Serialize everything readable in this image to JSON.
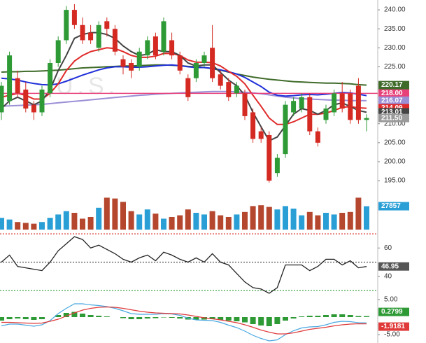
{
  "chart_data": [
    {
      "type": "candlestick",
      "watermark": "U.S.",
      "up_color": "#2e9a36",
      "down_color": "#d42a22",
      "ylim": [
        192.8,
        242.6
      ],
      "yticks": [
        {
          "value": 195,
          "label": "195.00"
        },
        {
          "value": 200,
          "label": "200.00"
        },
        {
          "value": 205,
          "label": "205.00"
        },
        {
          "value": 210,
          "label": "210.00"
        },
        {
          "value": 225,
          "label": "225.00"
        },
        {
          "value": 230,
          "label": "230.00"
        },
        {
          "value": 235,
          "label": "235.00"
        },
        {
          "value": 240,
          "label": "240.00"
        }
      ],
      "open": [
        213,
        216,
        222,
        219,
        215,
        213,
        218,
        226,
        232,
        240,
        236,
        234,
        230,
        237,
        235,
        227,
        226,
        225,
        228,
        233,
        229,
        232,
        228,
        222,
        222,
        226,
        230,
        223,
        221,
        218,
        218,
        213,
        208,
        207,
        197,
        202,
        213,
        214,
        217,
        208,
        211,
        213,
        218,
        218,
        220,
        211
      ],
      "high": [
        221,
        229,
        224,
        221,
        216,
        220,
        227,
        233,
        241,
        241.5,
        238,
        236,
        237,
        238,
        236,
        228,
        227,
        230,
        233,
        234,
        238,
        234,
        229,
        223,
        227,
        229,
        236,
        224,
        222,
        221,
        219,
        214,
        209,
        208,
        202,
        216,
        217,
        218,
        218,
        209,
        215,
        219,
        221,
        219,
        222,
        212.5
      ],
      "low": [
        211,
        215,
        217,
        213,
        211,
        212,
        217,
        225,
        231,
        235,
        231,
        231,
        229,
        233,
        228,
        223,
        222,
        224,
        227,
        227,
        228,
        227,
        223,
        216,
        221,
        225,
        221,
        219,
        216,
        217,
        211,
        205,
        205,
        194.5,
        196,
        201,
        212,
        213,
        207,
        204,
        210,
        212,
        213,
        210,
        210,
        208
      ],
      "close": [
        220,
        228,
        218,
        214,
        213,
        219,
        226,
        232,
        240,
        236,
        232,
        232,
        236,
        235,
        229,
        225,
        224,
        229,
        232,
        228,
        237,
        228,
        224,
        217,
        226,
        228,
        222,
        220,
        217,
        220,
        212,
        206,
        206,
        195,
        201,
        215,
        216,
        217,
        208,
        205,
        214,
        218,
        214,
        211,
        211,
        211.5
      ],
      "last_label": "211.50",
      "last_color": "#9a9a9a",
      "level": {
        "value": 218,
        "label": "218.00",
        "color": "#e8417a"
      },
      "series": [
        {
          "color": "#3f6b2a",
          "last_label": "220.17",
          "values": [
            223.6,
            223.7,
            223.7,
            223.8,
            223.8,
            223.9,
            224.0,
            224.1,
            224.3,
            224.5,
            224.7,
            224.8,
            224.9,
            225.0,
            225.1,
            225.2,
            225.2,
            225.3,
            225.4,
            225.5,
            225.5,
            225.4,
            225.3,
            225.1,
            225.0,
            224.8,
            224.5,
            224.1,
            223.6,
            223.1,
            222.7,
            222.3,
            222.0,
            221.7,
            221.5,
            221.3,
            221.1,
            221.0,
            220.9,
            220.8,
            220.7,
            220.7,
            220.6,
            220.5,
            220.3,
            220.17
          ]
        },
        {
          "color": "#9b8fd6",
          "last_label": "216.07",
          "values": [
            214.6,
            214.7,
            214.8,
            214.9,
            215.0,
            215.1,
            215.3,
            215.5,
            215.7,
            215.9,
            216.1,
            216.3,
            216.5,
            216.7,
            216.9,
            217.1,
            217.3,
            217.5,
            217.6,
            217.8,
            217.9,
            218.0,
            218.1,
            218.2,
            218.3,
            218.4,
            218.5,
            218.5,
            218.5,
            218.4,
            218.3,
            218.1,
            217.9,
            217.6,
            217.3,
            217.0,
            216.8,
            216.6,
            216.5,
            216.4,
            216.3,
            216.2,
            216.2,
            216.1,
            216.1,
            216.07
          ]
        },
        {
          "color": "#1f2fd8",
          "values": [
            222,
            221.8,
            221.5,
            221.0,
            220.6,
            220.3,
            220.2,
            220.5,
            221.2,
            222,
            222.8,
            223.5,
            224.2,
            224.7,
            225.0,
            225.0,
            224.9,
            224.9,
            225.0,
            225.2,
            225.4,
            225.5,
            225.3,
            225.0,
            224.8,
            224.8,
            224.6,
            224.2,
            223.7,
            223.1,
            222.2,
            221.0,
            219.8,
            218.3,
            217.5,
            217.3,
            217.4,
            217.6,
            217.7,
            217.6,
            217.8,
            218.0,
            218.2,
            218.1,
            217.8,
            217.4
          ]
        },
        {
          "color": "#e02a2a",
          "last_label": "214.09",
          "values": [
            217,
            217.5,
            218,
            217.5,
            216.5,
            216.5,
            218,
            220.5,
            224,
            226.5,
            228,
            229,
            229.5,
            230,
            229.8,
            229,
            228,
            227.5,
            227.5,
            227.8,
            228.5,
            228.5,
            228,
            226.8,
            226.2,
            226.2,
            226.1,
            225.2,
            223.8,
            222.5,
            220.5,
            217.5,
            214.6,
            211.5,
            209.8,
            209.8,
            210.5,
            211.5,
            212.5,
            212.5,
            212.8,
            213.5,
            214.3,
            214.5,
            214.2,
            214.09
          ]
        },
        {
          "color": "#444444",
          "last_label": "213.01",
          "values": [
            214,
            216,
            217,
            216,
            215,
            216,
            219,
            224,
            228,
            232.5,
            233.5,
            234,
            234,
            233.5,
            232.5,
            230.5,
            229,
            228,
            228.3,
            229.5,
            229,
            229,
            228,
            226,
            225.2,
            225.5,
            225.5,
            223.5,
            221.5,
            220,
            217.5,
            213,
            209.2,
            205.5,
            206.5,
            209.5,
            212.5,
            214,
            213.5,
            212.5,
            213.5,
            215,
            215.5,
            214.5,
            213.5,
            213.01
          ]
        }
      ]
    },
    {
      "type": "volume",
      "up_color": "#2a9fd6",
      "down_color": "#b5472e",
      "ylim": [
        0,
        40000
      ],
      "last_label": "27857",
      "last_color": "#2a9fd6",
      "values": [
        14000,
        12000,
        9000,
        8000,
        7000,
        9000,
        14000,
        18000,
        22000,
        20000,
        13000,
        15000,
        26000,
        38000,
        37000,
        33000,
        22000,
        18000,
        24000,
        19000,
        13000,
        15000,
        17000,
        24000,
        20000,
        18000,
        22000,
        17000,
        15000,
        18000,
        21000,
        28000,
        29000,
        27000,
        24000,
        28000,
        25000,
        17000,
        21000,
        17000,
        20000,
        18000,
        20000,
        21000,
        38000,
        27857
      ]
    },
    {
      "type": "line",
      "color": "#222222",
      "ylim": [
        27.5,
        72
      ],
      "yticks": [
        40,
        60
      ],
      "levels": [
        {
          "value": 70,
          "color": "#d42a22"
        },
        {
          "value": 50,
          "color": "#555555"
        },
        {
          "value": 30,
          "color": "#2e9a36"
        }
      ],
      "last_label": "46.95",
      "last_color": "#555555",
      "values": [
        50,
        55,
        47,
        46,
        45,
        44,
        50,
        58,
        63,
        68,
        66,
        60,
        62,
        59,
        56,
        52,
        50,
        53,
        55,
        51,
        57,
        55,
        52,
        50,
        53,
        50,
        56,
        50,
        48,
        42,
        36,
        32,
        31,
        28,
        32,
        48,
        48,
        48,
        44,
        47,
        52,
        52,
        48,
        51,
        46,
        46.95
      ]
    },
    {
      "type": "macd",
      "ylim": [
        -7.4,
        6.6
      ],
      "yticks": [
        {
          "value": 5,
          "label": "5.00"
        },
        {
          "value": -5,
          "label": "-5.00"
        }
      ],
      "histogram": {
        "color": "#2e9a36",
        "last_label": "0.2799",
        "values": [
          -1,
          -0.6,
          -0.4,
          -0.6,
          -0.8,
          -0.6,
          0,
          0.6,
          1.2,
          1.5,
          1.0,
          0.6,
          0.4,
          0.2,
          0,
          -0.3,
          -0.6,
          -0.6,
          -0.4,
          -0.3,
          -0.1,
          -0.2,
          -0.4,
          -0.7,
          -0.8,
          -0.7,
          -0.6,
          -0.8,
          -1.0,
          -1.2,
          -1.5,
          -2.0,
          -2.4,
          -2.6,
          -2.0,
          -1.0,
          -0.4,
          0.2,
          0.4,
          0.4,
          0.6,
          0.8,
          0.8,
          0.6,
          0.3,
          0.2799
        ]
      },
      "series": [
        {
          "color": "#4aa8e0",
          "values": [
            -2.5,
            -2,
            -2,
            -2.3,
            -2.6,
            -2.2,
            -1,
            1,
            2.5,
            3.8,
            3.8,
            3.5,
            3.3,
            3,
            2.5,
            1.8,
            1,
            0.8,
            0.8,
            0.8,
            1,
            0.9,
            0.5,
            -0.3,
            -0.8,
            -0.9,
            -1,
            -1.5,
            -2.3,
            -3,
            -4,
            -5.2,
            -6.1,
            -6.8,
            -6.5,
            -5,
            -3.9,
            -3.1,
            -2.8,
            -2.7,
            -2.2,
            -1.5,
            -1.2,
            -1.3,
            -1.6,
            -1.64
          ]
        },
        {
          "color": "#e03a3a",
          "last_label": "-1.9181",
          "values": [
            -1.5,
            -1.5,
            -1.6,
            -1.7,
            -1.8,
            -1.7,
            -1.2,
            -0.6,
            0.3,
            1.2,
            2,
            2.5,
            2.8,
            2.9,
            2.8,
            2.5,
            2.1,
            1.7,
            1.4,
            1.2,
            1.1,
            1.0,
            0.9,
            0.6,
            0.2,
            -0.2,
            -0.5,
            -0.8,
            -1.2,
            -1.6,
            -2.2,
            -2.9,
            -3.7,
            -4.3,
            -4.8,
            -4.8,
            -4.5,
            -4.0,
            -3.5,
            -3.2,
            -2.9,
            -2.5,
            -2.2,
            -2.0,
            -1.9,
            -1.9181
          ]
        }
      ]
    }
  ]
}
